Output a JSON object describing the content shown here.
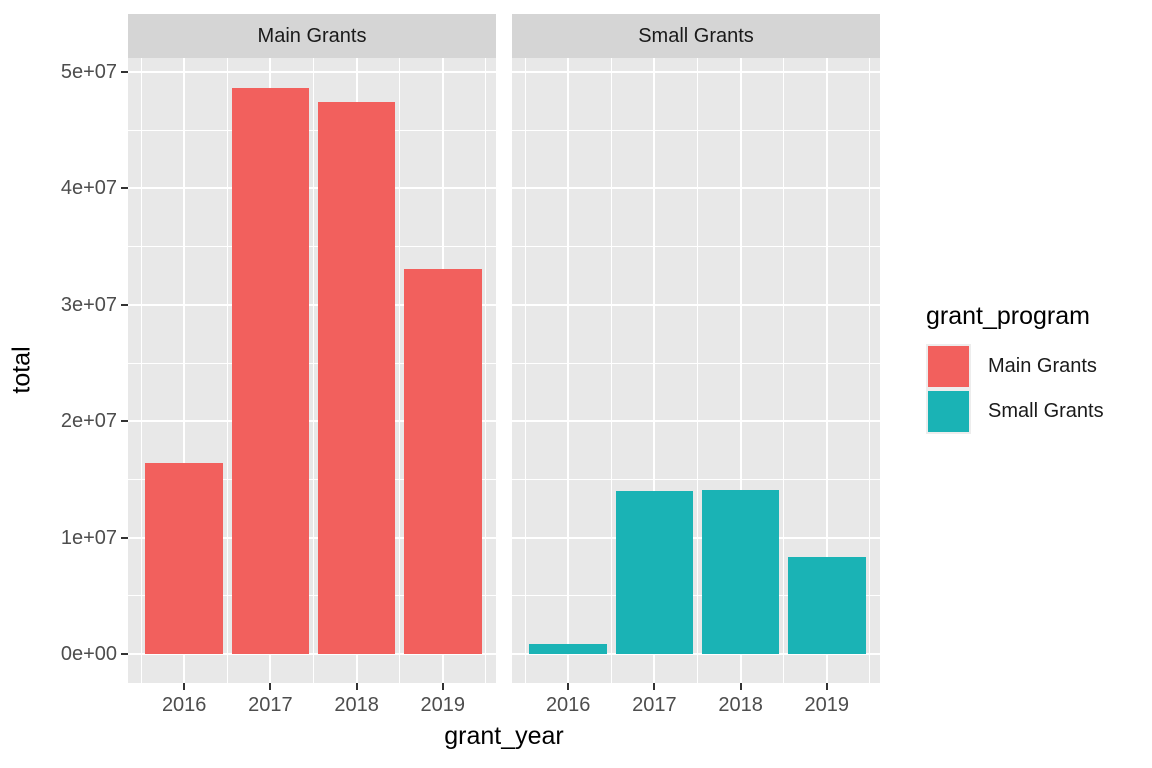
{
  "chart_data": {
    "type": "bar",
    "title": "",
    "xlabel": "grant_year",
    "ylabel": "total",
    "categories": [
      "2016",
      "2017",
      "2018",
      "2019"
    ],
    "facets": [
      {
        "label": "Main Grants",
        "series_name": "Main Grants",
        "color_key": "bar_main",
        "values": [
          16400000,
          48600000,
          47400000,
          33100000
        ]
      },
      {
        "label": "Small Grants",
        "series_name": "Small Grants",
        "color_key": "bar_small",
        "values": [
          900000,
          14000000,
          14100000,
          8300000
        ]
      }
    ],
    "y_ticks": [
      {
        "label": "0e+00",
        "value": 0
      },
      {
        "label": "1e+07",
        "value": 10000000
      },
      {
        "label": "2e+07",
        "value": 20000000
      },
      {
        "label": "3e+07",
        "value": 30000000
      },
      {
        "label": "4e+07",
        "value": 40000000
      },
      {
        "label": "5e+07",
        "value": 50000000
      }
    ],
    "ylim": [
      0,
      50000000
    ],
    "y_minor_step": 5000000,
    "grid": true,
    "legend_position": "right",
    "legend_title": "grant_program",
    "legend_entries": [
      {
        "label": "Main Grants",
        "color_key": "bar_main"
      },
      {
        "label": "Small Grants",
        "color_key": "bar_small"
      }
    ]
  },
  "colors": {
    "bar_main": "#F2605D",
    "bar_small": "#1AB3B5",
    "panel_bg": "#E8E8E8",
    "strip_bg": "#D5D5D5",
    "grid": "#FFFFFF",
    "tick_mark": "#333333",
    "tick_label": "#4D4D4D",
    "axis_title": "#000000",
    "strip_text": "#1A1A1A",
    "legend_key_bg": "#EDEDED",
    "page_bg": "#FFFFFF"
  }
}
